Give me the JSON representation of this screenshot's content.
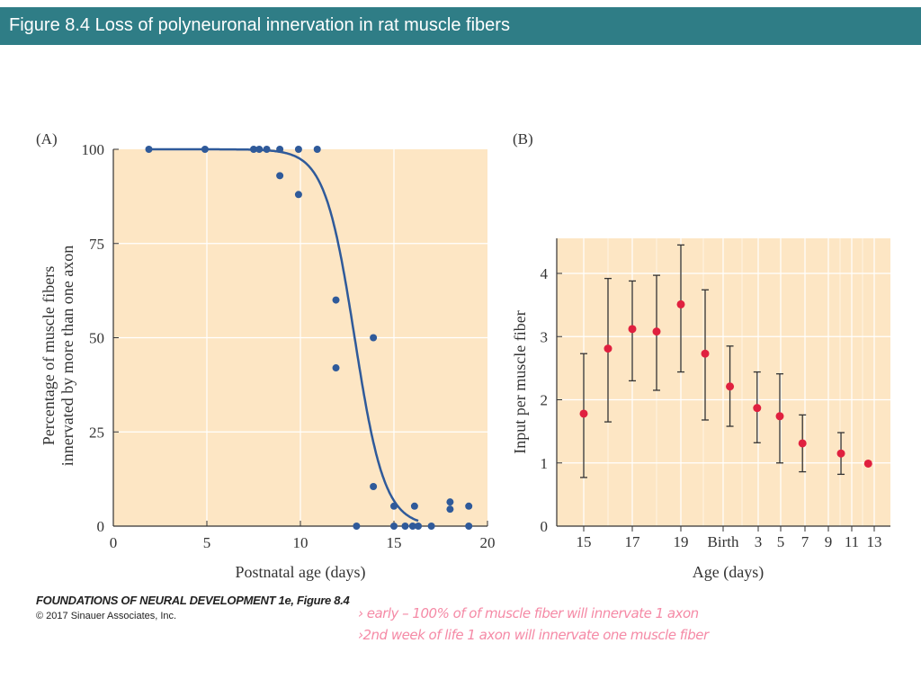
{
  "header": {
    "title": "Figure 8.4  Loss of polyneuronal innervation in rat muscle fibers"
  },
  "credit": {
    "line1": "FOUNDATIONS OF NEURAL DEVELOPMENT 1e, Figure 8.4",
    "line2": "© 2017 Sinauer Associates, Inc."
  },
  "annotations": [
    "› early     – 100% of of muscle fiber will innervate 1 axon",
    "›2nd week of life 1 axon will innervate one muscle fiber"
  ],
  "colors": {
    "header": "#2f7d86",
    "plot_bg": "#fde6c4",
    "series_a": "#2f5a9a",
    "series_b": "#e0203f",
    "annotation": "#f58aa6"
  },
  "chart_data": [
    {
      "panel": "(A)",
      "type": "scatter",
      "xlabel": "Postnatal age (days)",
      "ylabel": [
        "Percentage of muscle fibers",
        "innervated by more than one axon"
      ],
      "xlim": [
        0,
        20
      ],
      "ylim": [
        0,
        100
      ],
      "xticks": [
        0,
        5,
        10,
        15,
        20
      ],
      "yticks": [
        0,
        25,
        50,
        75,
        100
      ],
      "grid": true,
      "points": [
        [
          1.9,
          100
        ],
        [
          4.9,
          100
        ],
        [
          7.5,
          100
        ],
        [
          7.8,
          100
        ],
        [
          8.2,
          100
        ],
        [
          8.9,
          100
        ],
        [
          9.9,
          100
        ],
        [
          10.9,
          100
        ],
        [
          8.9,
          93
        ],
        [
          9.9,
          88
        ],
        [
          11.9,
          60
        ],
        [
          11.9,
          42
        ],
        [
          13.9,
          50
        ],
        [
          13.9,
          10.5
        ],
        [
          15,
          5.3
        ],
        [
          16.1,
          5.3
        ],
        [
          18,
          6.4
        ],
        [
          18,
          4.5
        ],
        [
          19,
          5.3
        ],
        [
          13,
          0
        ],
        [
          15,
          0
        ],
        [
          15.6,
          0
        ],
        [
          16,
          0
        ],
        [
          16.3,
          0
        ],
        [
          17,
          0
        ],
        [
          19,
          0
        ]
      ],
      "fit_curve": {
        "type": "sigmoid",
        "x_range": [
          1.9,
          16.3
        ],
        "midpoint": 12.9
      }
    },
    {
      "panel": "(B)",
      "type": "scatter",
      "xlabel": "Age (days)",
      "ylabel": "Input per muscle fiber",
      "ylim": [
        0,
        4.5
      ],
      "yticks": [
        0,
        1,
        2,
        3,
        4
      ],
      "xtick_labels": [
        "15",
        "17",
        "19",
        "Birth",
        "3",
        "5",
        "7",
        "9",
        "11",
        "13"
      ],
      "grid": true,
      "points": [
        {
          "stage": "embryonic",
          "day": 15,
          "y": 1.78,
          "lo": 0.77,
          "hi": 2.73
        },
        {
          "stage": "embryonic",
          "day": 16,
          "y": 2.81,
          "lo": 1.65,
          "hi": 3.92
        },
        {
          "stage": "embryonic",
          "day": 17,
          "y": 3.12,
          "lo": 2.3,
          "hi": 3.88
        },
        {
          "stage": "embryonic",
          "day": 18,
          "y": 3.08,
          "lo": 2.15,
          "hi": 3.97
        },
        {
          "stage": "embryonic",
          "day": 19,
          "y": 3.51,
          "lo": 2.44,
          "hi": 4.45
        },
        {
          "stage": "embryonic",
          "day": 20,
          "y": 2.73,
          "lo": 1.68,
          "hi": 3.74
        },
        {
          "stage": "postnatal",
          "day": 0.6,
          "y": 2.21,
          "lo": 1.58,
          "hi": 2.85
        },
        {
          "stage": "postnatal",
          "day": 3,
          "y": 1.87,
          "lo": 1.32,
          "hi": 2.44
        },
        {
          "stage": "postnatal",
          "day": 5,
          "y": 1.74,
          "lo": 1.0,
          "hi": 2.41
        },
        {
          "stage": "postnatal",
          "day": 7,
          "y": 1.31,
          "lo": 0.86,
          "hi": 1.76
        },
        {
          "stage": "postnatal",
          "day": 10.4,
          "y": 1.15,
          "lo": 0.82,
          "hi": 1.48
        },
        {
          "stage": "postnatal",
          "day": 12.8,
          "y": 0.99
        }
      ]
    }
  ]
}
